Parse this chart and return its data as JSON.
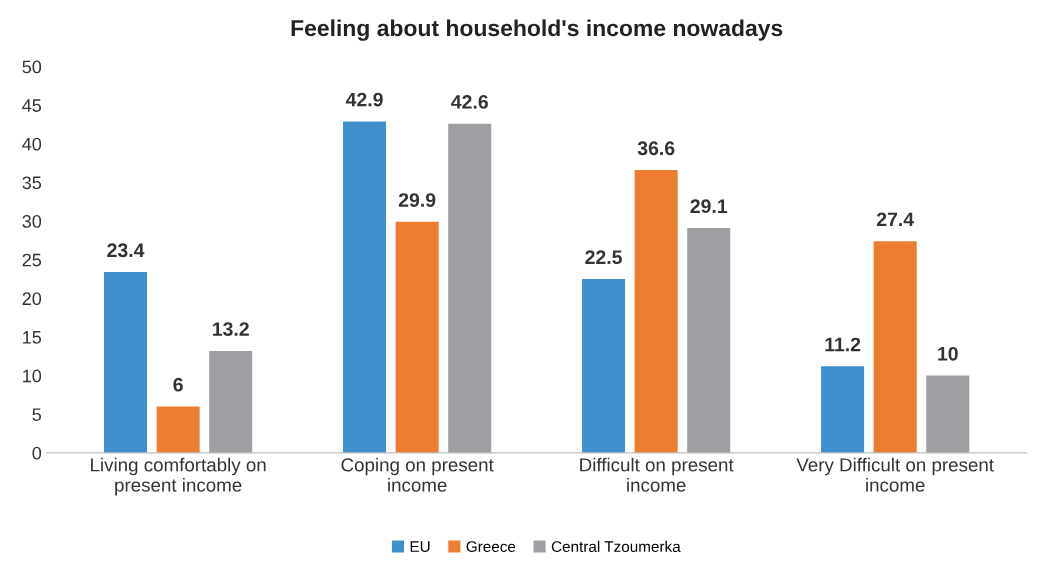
{
  "chart_data": {
    "type": "bar",
    "title": "Feeling about household's income nowadays",
    "categories": [
      "Living comfortably on\npresent income",
      "Coping on present\nincome",
      "Difficult on present\nincome",
      "Very Difficult on present\nincome"
    ],
    "series": [
      {
        "name": "EU",
        "color": "#3f8fcd",
        "values": [
          23.4,
          42.9,
          22.5,
          11.2
        ]
      },
      {
        "name": "Greece",
        "color": "#ed7d31",
        "values": [
          6,
          29.9,
          36.6,
          27.4
        ]
      },
      {
        "name": "Central Tzoumerka",
        "color": "#9e9fa3",
        "values": [
          13.2,
          42.6,
          29.1,
          10
        ]
      }
    ],
    "ylim": [
      0,
      50
    ],
    "yticks": [
      0,
      5,
      10,
      15,
      20,
      25,
      30,
      35,
      40,
      45,
      50
    ],
    "data_labels": true,
    "grid": false,
    "legend": "bottom"
  }
}
